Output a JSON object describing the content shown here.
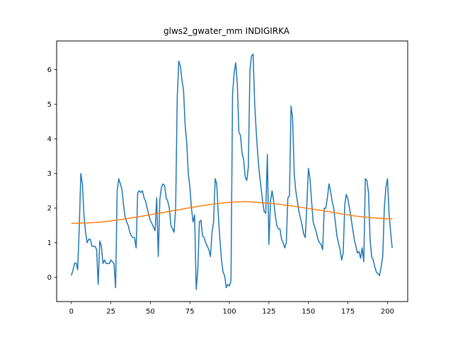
{
  "chart_data": {
    "type": "line",
    "title": "glws2_gwater_mm INDIGIRKA",
    "xlabel": "",
    "ylabel": "",
    "xlim": [
      -9.3,
      212.8
    ],
    "ylim": [
      -0.7,
      6.83
    ],
    "xticks": [
      0,
      25,
      50,
      75,
      100,
      125,
      150,
      175,
      200
    ],
    "yticks": [
      0,
      1,
      2,
      3,
      4,
      5,
      6
    ],
    "grid": false,
    "series": [
      {
        "color": "#1f77b4",
        "x": [
          0,
          1,
          2,
          3,
          4,
          5,
          6,
          7,
          8,
          9,
          10,
          11,
          12,
          13,
          14,
          15,
          16,
          17,
          18,
          19,
          20,
          21,
          22,
          23,
          24,
          25,
          26,
          27,
          28,
          29,
          30,
          31,
          32,
          33,
          34,
          35,
          36,
          37,
          38,
          39,
          40,
          41,
          42,
          43,
          44,
          45,
          46,
          47,
          48,
          49,
          50,
          51,
          52,
          53,
          54,
          55,
          56,
          57,
          58,
          59,
          60,
          61,
          62,
          63,
          64,
          65,
          66,
          67,
          68,
          69,
          70,
          71,
          72,
          73,
          74,
          75,
          76,
          77,
          78,
          79,
          80,
          81,
          82,
          83,
          84,
          85,
          86,
          87,
          88,
          89,
          90,
          91,
          92,
          93,
          94,
          95,
          96,
          97,
          98,
          99,
          100,
          101,
          102,
          103,
          104,
          105,
          106,
          107,
          108,
          109,
          110,
          111,
          112,
          113,
          114,
          115,
          116,
          117,
          118,
          119,
          120,
          121,
          122,
          123,
          124,
          125,
          126,
          127,
          128,
          129,
          130,
          131,
          132,
          133,
          134,
          135,
          136,
          137,
          138,
          139,
          140,
          141,
          142,
          143,
          144,
          145,
          146,
          147,
          148,
          149,
          150,
          151,
          152,
          153,
          154,
          155,
          156,
          157,
          158,
          159,
          160,
          161,
          162,
          163,
          164,
          165,
          166,
          167,
          168,
          169,
          170,
          171,
          172,
          173,
          174,
          175,
          176,
          177,
          178,
          179,
          180,
          181,
          182,
          183,
          184,
          185,
          186,
          187,
          188,
          189,
          190,
          191,
          192,
          193,
          194,
          195,
          196,
          197,
          198,
          199,
          200,
          201,
          202,
          203
        ],
        "y": [
          0.05,
          0.2,
          0.4,
          0.42,
          0.22,
          1.4,
          3.0,
          2.7,
          1.8,
          1.3,
          1.0,
          1.1,
          1.1,
          0.9,
          0.9,
          0.9,
          0.8,
          -0.2,
          1.05,
          0.9,
          0.4,
          0.5,
          0.4,
          0.4,
          0.4,
          0.5,
          0.45,
          0.4,
          -0.3,
          2.5,
          2.85,
          2.7,
          2.55,
          2.1,
          1.75,
          1.6,
          1.5,
          1.3,
          1.2,
          1.15,
          1.15,
          0.85,
          2.45,
          2.5,
          2.45,
          2.5,
          2.3,
          2.2,
          2.0,
          1.8,
          1.65,
          1.55,
          1.45,
          1.35,
          2.3,
          0.6,
          2.25,
          2.6,
          2.7,
          2.65,
          2.3,
          2.2,
          2.0,
          1.5,
          1.4,
          1.3,
          2.0,
          5.2,
          6.25,
          6.1,
          5.7,
          5.4,
          4.4,
          3.9,
          3.0,
          2.6,
          2.0,
          1.6,
          1.8,
          -0.35,
          0.2,
          1.6,
          1.65,
          1.2,
          1.15,
          1.0,
          0.9,
          0.8,
          0.6,
          1.3,
          1.6,
          2.85,
          2.7,
          1.8,
          1.1,
          0.5,
          0.15,
          0.05,
          -0.3,
          -0.2,
          -0.25,
          -0.1,
          5.3,
          5.9,
          6.2,
          5.6,
          4.2,
          4.1,
          3.6,
          3.4,
          2.9,
          2.8,
          3.2,
          6.0,
          6.4,
          6.45,
          5.0,
          4.2,
          3.5,
          3.0,
          2.6,
          2.2,
          1.9,
          1.85,
          3.55,
          0.95,
          2.2,
          2.5,
          2.2,
          1.8,
          1.5,
          1.4,
          1.4,
          1.1,
          1.0,
          0.85,
          1.0,
          2.3,
          2.35,
          4.95,
          4.6,
          3.0,
          2.5,
          2.2,
          1.9,
          1.7,
          1.5,
          1.25,
          1.15,
          2.1,
          3.15,
          2.85,
          2.2,
          1.6,
          1.45,
          1.3,
          1.1,
          1.0,
          0.95,
          0.8,
          2.0,
          2.0,
          2.3,
          2.7,
          2.5,
          2.2,
          2.0,
          1.6,
          1.2,
          1.0,
          0.8,
          0.5,
          0.7,
          2.1,
          2.4,
          2.25,
          2.0,
          1.7,
          1.4,
          1.1,
          0.9,
          0.7,
          0.75,
          0.55,
          0.85,
          0.45,
          2.85,
          2.8,
          2.45,
          1.1,
          0.6,
          0.5,
          0.3,
          0.15,
          0.1,
          0.05,
          0.3,
          0.6,
          2.0,
          2.6,
          2.85,
          1.85,
          1.3,
          0.85
        ]
      },
      {
        "color": "#ff7f0e",
        "type": "sinusoid",
        "x": [
          0,
          10,
          20,
          30,
          40,
          50,
          60,
          70,
          80,
          90,
          100,
          110,
          120,
          130,
          140,
          150,
          160,
          170,
          180,
          190,
          200,
          203
        ],
        "y": [
          1.56,
          1.57,
          1.6,
          1.66,
          1.73,
          1.81,
          1.89,
          1.97,
          2.05,
          2.12,
          2.17,
          2.19,
          2.16,
          2.12,
          2.06,
          1.99,
          1.92,
          1.84,
          1.77,
          1.72,
          1.69,
          1.69
        ]
      }
    ]
  }
}
